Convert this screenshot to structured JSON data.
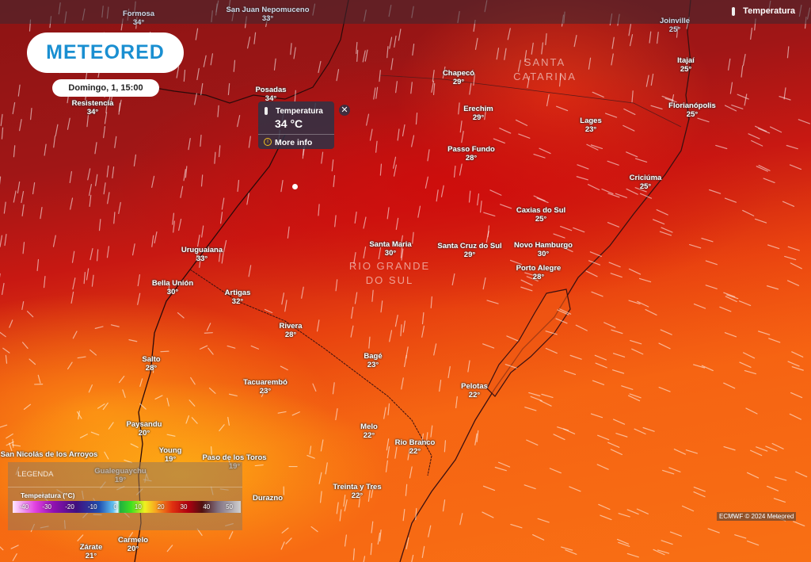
{
  "app": {
    "brand": "METEORED",
    "date_time": "Domingo, 1, 15:00",
    "layer_label": "Temperatura",
    "credit": "ECMWF © 2024 Meteored"
  },
  "popup": {
    "title": "Temperatura",
    "value": "34 °C",
    "more_info": "More info",
    "close": "✕"
  },
  "legend": {
    "title": "LEGENDA",
    "subtitle": "Temperatura (°C)",
    "ticks": [
      "-40",
      "-30",
      "-20",
      "-10",
      "0",
      "10",
      "20",
      "30",
      "40",
      "50"
    ]
  },
  "regions": [
    {
      "line1": "SANTA",
      "line2": "CATARINA"
    },
    {
      "line1": "RIO GRANDE",
      "line2": "DO SUL"
    }
  ],
  "cities": [
    {
      "name": "Formosa",
      "temp": "34°"
    },
    {
      "name": "San Juan Nepomuceno",
      "temp": "33°"
    },
    {
      "name": "Resistencia",
      "temp": "34°"
    },
    {
      "name": "Posadas",
      "temp": "34°"
    },
    {
      "name": "Chapecó",
      "temp": "29°"
    },
    {
      "name": "Erechim",
      "temp": "29°"
    },
    {
      "name": "Lages",
      "temp": "23°"
    },
    {
      "name": "Joinville",
      "temp": "25°"
    },
    {
      "name": "Itajaí",
      "temp": "25°"
    },
    {
      "name": "Florianópolis",
      "temp": "25°"
    },
    {
      "name": "Passo Fundo",
      "temp": "28°"
    },
    {
      "name": "Criciúma",
      "temp": "25°"
    },
    {
      "name": "Caxias do Sul",
      "temp": "25°"
    },
    {
      "name": "Santa Maria",
      "temp": "30°"
    },
    {
      "name": "Santa Cruz do Sul",
      "temp": "29°"
    },
    {
      "name": "Novo Hamburgo",
      "temp": "30°"
    },
    {
      "name": "Porto Alegre",
      "temp": "28°"
    },
    {
      "name": "Uruguaiana",
      "temp": "33°"
    },
    {
      "name": "Bella Unión",
      "temp": "30°"
    },
    {
      "name": "Artigas",
      "temp": "32°"
    },
    {
      "name": "Rivera",
      "temp": "28°"
    },
    {
      "name": "Salto",
      "temp": "28°"
    },
    {
      "name": "Bagé",
      "temp": "23°"
    },
    {
      "name": "Tacuarembó",
      "temp": "23°"
    },
    {
      "name": "Pelotas",
      "temp": "22°"
    },
    {
      "name": "Paysandu",
      "temp": "20°"
    },
    {
      "name": "Melo",
      "temp": "22°"
    },
    {
      "name": "Young",
      "temp": "19°"
    },
    {
      "name": "Paso de los Toros",
      "temp": "19°"
    },
    {
      "name": "Rio Branco",
      "temp": "22°"
    },
    {
      "name": "Gualeguaychu",
      "temp": "19°"
    },
    {
      "name": "Treinta y Tres",
      "temp": "22°"
    },
    {
      "name": "Durazno",
      "temp": ""
    },
    {
      "name": "Carmelo",
      "temp": "20°"
    },
    {
      "name": "Zárate",
      "temp": "21°"
    },
    {
      "name": "San Nicolás de los Arroyos",
      "temp": ""
    }
  ]
}
